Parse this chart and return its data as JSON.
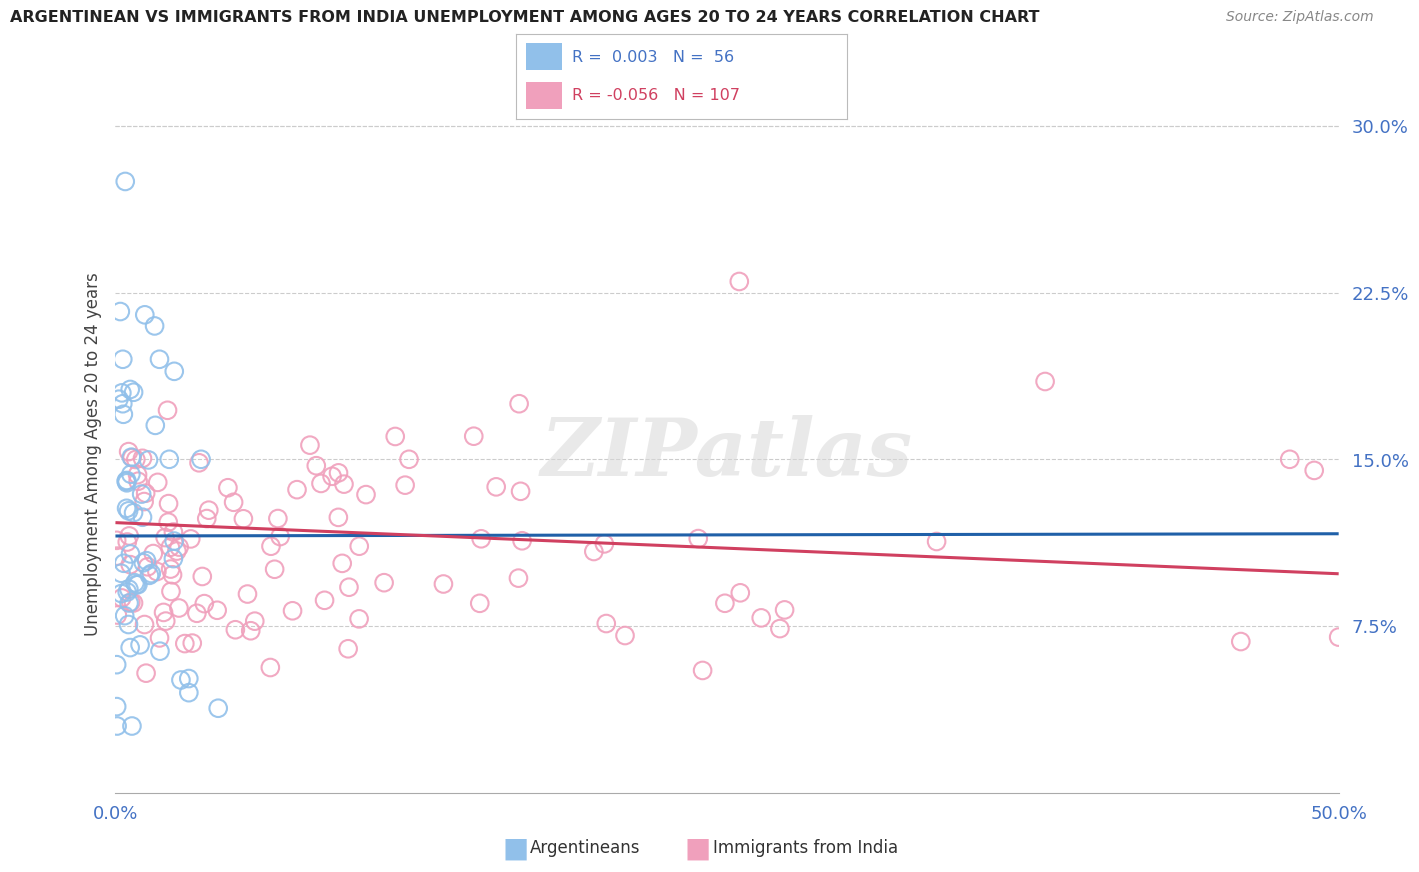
{
  "title": "ARGENTINEAN VS IMMIGRANTS FROM INDIA UNEMPLOYMENT AMONG AGES 20 TO 24 YEARS CORRELATION CHART",
  "source": "Source: ZipAtlas.com",
  "ylabel": "Unemployment Among Ages 20 to 24 years",
  "xlim": [
    0.0,
    0.5
  ],
  "ylim": [
    0.0,
    0.305
  ],
  "yticks": [
    0.075,
    0.15,
    0.225,
    0.3
  ],
  "ytick_labels": [
    "7.5%",
    "15.0%",
    "22.5%",
    "30.0%"
  ],
  "xtick_positions": [
    0.0,
    0.05,
    0.1,
    0.15,
    0.2,
    0.25,
    0.3,
    0.35,
    0.4,
    0.45,
    0.5
  ],
  "xtick_labels": [
    "0.0%",
    "",
    "",
    "",
    "",
    "",
    "",
    "",
    "",
    "",
    "50.0%"
  ],
  "arg_color": "#91c0ea",
  "arg_line_color": "#2060a8",
  "india_color": "#f0a0bc",
  "india_line_color": "#d04060",
  "arg_R": 0.003,
  "arg_N": 56,
  "india_R": -0.056,
  "india_N": 107,
  "watermark_text": "ZIPatlas",
  "grid_color": "#cccccc",
  "background_color": "#ffffff",
  "title_color": "#222222",
  "tick_color": "#4472c4",
  "label_arg": "Argentineans",
  "label_india": "Immigrants from India",
  "legend_text_color_arg": "#4472c4",
  "legend_text_color_india": "#d04060",
  "arg_line_y_at_0": 0.1155,
  "arg_line_y_at_05": 0.1165,
  "india_line_y_at_0": 0.1215,
  "india_line_y_at_05": 0.0985
}
